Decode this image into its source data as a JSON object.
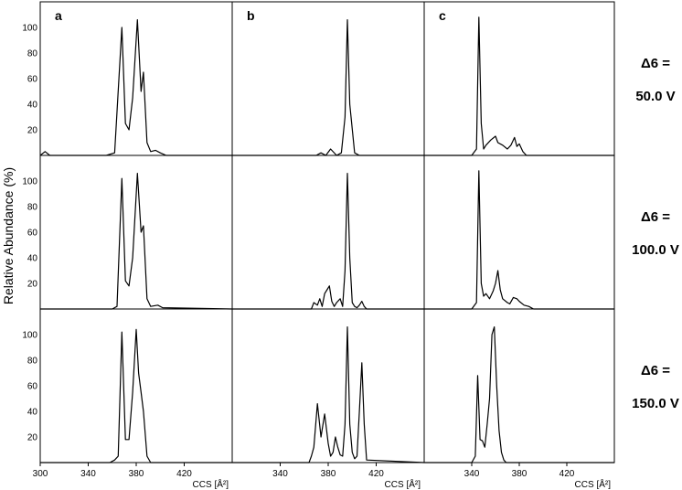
{
  "figure": {
    "ylabel": "Relative Abundance (%)",
    "xlabel": "CCS [Å²]",
    "column_letters": [
      "a",
      "b",
      "c"
    ],
    "row_labels": [
      {
        "line1": "Δ6 =",
        "line2": "50.0 V"
      },
      {
        "line1": "Δ6 =",
        "line2": "100.0 V"
      },
      {
        "line1": "Δ6 =",
        "line2": "150.0 V"
      }
    ],
    "y_ticks": [
      20,
      40,
      60,
      80,
      100
    ],
    "x_ticks": [
      {
        "panel": "a",
        "ticks": [
          300,
          340,
          380,
          420
        ]
      },
      {
        "panel": "b",
        "ticks": [
          340,
          380,
          420
        ]
      },
      {
        "panel": "c",
        "ticks": [
          340,
          380,
          420
        ]
      }
    ]
  },
  "chart_data": [
    {
      "panel": "a",
      "row": "50.0 V",
      "type": "line",
      "xlim": [
        300,
        460
      ],
      "ylim": [
        0,
        120
      ],
      "series": [
        {
          "x": [
            300,
            304,
            308,
            312,
            355,
            362,
            368,
            371,
            374,
            377,
            381,
            384,
            386,
            389,
            392,
            396,
            400,
            405,
            460
          ],
          "y": [
            0,
            3,
            0,
            0,
            0,
            2,
            100,
            25,
            20,
            45,
            106,
            50,
            65,
            10,
            3,
            4,
            2,
            0,
            0
          ]
        }
      ]
    },
    {
      "panel": "b",
      "row": "50.0 V",
      "type": "line",
      "xlim": [
        300,
        460
      ],
      "ylim": [
        0,
        120
      ],
      "series": [
        {
          "x": [
            300,
            370,
            374,
            378,
            382,
            387,
            391,
            394,
            396,
            398,
            402,
            406,
            460
          ],
          "y": [
            0,
            0,
            2,
            0,
            5,
            0,
            2,
            30,
            106,
            40,
            2,
            0,
            0
          ]
        }
      ]
    },
    {
      "panel": "c",
      "row": "50.0 V",
      "type": "line",
      "xlim": [
        300,
        460
      ],
      "ylim": [
        0,
        120
      ],
      "series": [
        {
          "x": [
            300,
            340,
            344,
            346,
            348,
            350,
            352,
            356,
            360,
            362,
            366,
            370,
            373,
            376,
            378,
            380,
            383,
            386,
            460
          ],
          "y": [
            0,
            0,
            5,
            108,
            25,
            5,
            8,
            12,
            15,
            10,
            8,
            5,
            8,
            14,
            7,
            9,
            3,
            0,
            0
          ]
        }
      ]
    },
    {
      "panel": "a",
      "row": "100.0 V",
      "type": "line",
      "xlim": [
        300,
        460
      ],
      "ylim": [
        0,
        120
      ],
      "series": [
        {
          "x": [
            300,
            360,
            364,
            368,
            371,
            374,
            377,
            381,
            384,
            386,
            389,
            392,
            398,
            402,
            460
          ],
          "y": [
            0,
            0,
            2,
            102,
            22,
            18,
            40,
            106,
            60,
            65,
            8,
            2,
            3,
            1,
            0
          ]
        }
      ]
    },
    {
      "panel": "b",
      "row": "100.0 V",
      "type": "line",
      "xlim": [
        300,
        460
      ],
      "ylim": [
        0,
        120
      ],
      "series": [
        {
          "x": [
            300,
            366,
            368,
            371,
            373,
            375,
            377,
            379,
            381,
            383,
            385,
            387,
            390,
            392,
            394,
            396,
            398,
            400,
            402,
            404,
            406,
            408,
            410,
            412,
            460
          ],
          "y": [
            0,
            0,
            5,
            3,
            8,
            2,
            12,
            15,
            18,
            6,
            2,
            5,
            8,
            2,
            30,
            106,
            40,
            5,
            2,
            1,
            3,
            6,
            2,
            0,
            0
          ]
        }
      ]
    },
    {
      "panel": "c",
      "row": "100.0 V",
      "type": "line",
      "xlim": [
        300,
        460
      ],
      "ylim": [
        0,
        120
      ],
      "series": [
        {
          "x": [
            300,
            340,
            344,
            346,
            348,
            350,
            352,
            355,
            358,
            360,
            362,
            364,
            366,
            370,
            372,
            375,
            378,
            380,
            384,
            388,
            392,
            460
          ],
          "y": [
            0,
            0,
            5,
            108,
            20,
            10,
            12,
            8,
            14,
            20,
            30,
            15,
            8,
            5,
            4,
            9,
            8,
            6,
            3,
            2,
            0,
            0
          ]
        }
      ]
    },
    {
      "panel": "a",
      "row": "150.0 V",
      "type": "line",
      "xlim": [
        300,
        460
      ],
      "ylim": [
        0,
        120
      ],
      "series": [
        {
          "x": [
            300,
            358,
            362,
            365,
            368,
            371,
            374,
            377,
            380,
            382,
            384,
            386,
            389,
            392,
            460
          ],
          "y": [
            0,
            0,
            2,
            5,
            102,
            18,
            18,
            55,
            104,
            70,
            55,
            40,
            5,
            0,
            0
          ]
        }
      ]
    },
    {
      "panel": "b",
      "row": "150.0 V",
      "type": "line",
      "xlim": [
        300,
        460
      ],
      "ylim": [
        0,
        120
      ],
      "series": [
        {
          "x": [
            300,
            364,
            366,
            368,
            371,
            374,
            377,
            380,
            382,
            384,
            386,
            388,
            390,
            392,
            394,
            396,
            398,
            400,
            402,
            404,
            406,
            408,
            410,
            412,
            460
          ],
          "y": [
            0,
            0,
            5,
            12,
            46,
            20,
            38,
            15,
            5,
            8,
            20,
            12,
            6,
            5,
            30,
            106,
            30,
            8,
            3,
            5,
            40,
            78,
            30,
            2,
            0
          ]
        }
      ]
    },
    {
      "panel": "c",
      "row": "150.0 V",
      "type": "line",
      "xlim": [
        300,
        460
      ],
      "ylim": [
        0,
        120
      ],
      "series": [
        {
          "x": [
            300,
            340,
            343,
            345,
            347,
            349,
            351,
            353,
            355,
            357,
            359,
            361,
            363,
            365,
            367,
            369,
            372,
            375,
            460
          ],
          "y": [
            0,
            0,
            5,
            68,
            18,
            17,
            12,
            30,
            50,
            100,
            106,
            60,
            25,
            8,
            2,
            0,
            0,
            0,
            0
          ]
        }
      ]
    }
  ]
}
